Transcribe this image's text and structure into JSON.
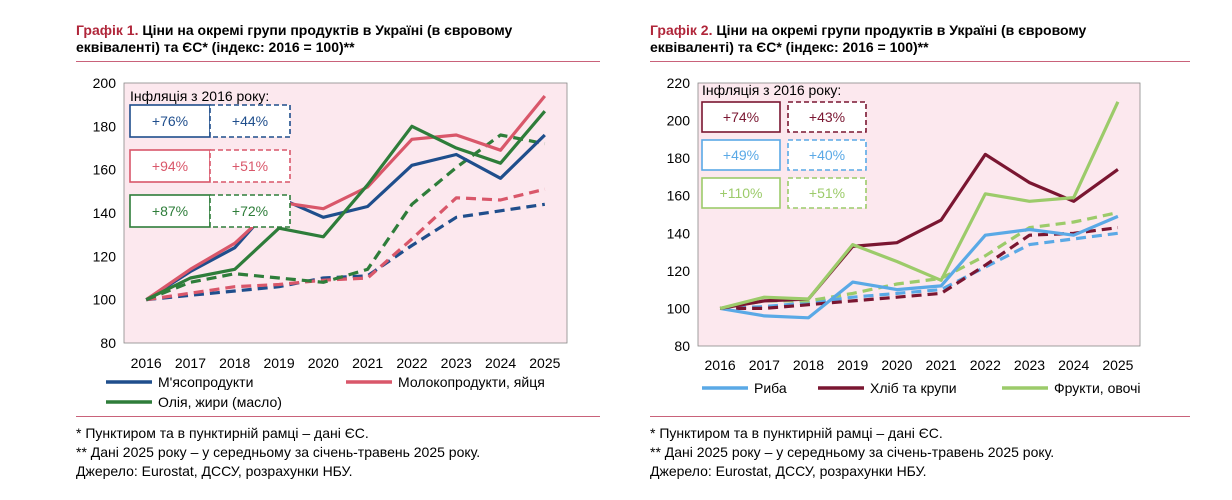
{
  "charts": [
    {
      "title_num": "Графік 1.",
      "title_rest": " Ціни на окремі групи продуктів в Україні (в євровому",
      "title_line2": "еквіваленті) та ЄС* (індекс: 2016 = 100)**",
      "notes": [
        "* Пунктиром та в пунктирній рамці – дані ЄС.",
        "** Дані 2025 року – у середньому за січень-травень 2025 року.",
        "Джерело: Eurostat, ДССУ, розрахунки НБУ."
      ],
      "inflation_title": "Інфляція з 2016 року:",
      "badges": [
        {
          "ua": "+76%",
          "eu": "+44%",
          "color": "#1f4e8c"
        },
        {
          "ua": "+94%",
          "eu": "+51%",
          "color": "#d9576a"
        },
        {
          "ua": "+87%",
          "eu": "+72%",
          "color": "#2e7d3a"
        }
      ]
    },
    {
      "title_num": "Графік 2.",
      "title_rest": " Ціни на окремі групи продуктів в Україні (в євровому",
      "title_line2": "еквіваленті) та ЄС* (індекс: 2016 = 100)**",
      "notes": [
        "* Пунктиром та в пунктирній рамці – дані ЄС.",
        "** Дані 2025 року – у середньому за січень-травень 2025 року.",
        "Джерело: Eurostat, ДССУ, розрахунки НБУ."
      ],
      "inflation_title": "Інфляція з 2016 року:",
      "badges": [
        {
          "ua": "+74%",
          "eu": "+43%",
          "color": "#7a1631"
        },
        {
          "ua": "+49%",
          "eu": "+40%",
          "color": "#5aa9e6"
        },
        {
          "ua": "+110%",
          "eu": "+51%",
          "color": "#9ccb6a"
        }
      ]
    }
  ],
  "chart_data": [
    {
      "type": "line",
      "x": [
        2016,
        2017,
        2018,
        2019,
        2020,
        2021,
        2022,
        2023,
        2024,
        2025
      ],
      "ylim": [
        80,
        200
      ],
      "yticks": [
        80,
        100,
        120,
        140,
        160,
        180,
        200
      ],
      "grid": false,
      "legend_position": "bottom",
      "series": [
        {
          "name": "М'ясопродукти",
          "color": "#1f4e8c",
          "dashed": false,
          "values": [
            100,
            113,
            124,
            147,
            138,
            143,
            162,
            167,
            156,
            176
          ]
        },
        {
          "name": "Молокопродукти, яйця",
          "color": "#d9576a",
          "dashed": false,
          "values": [
            100,
            114,
            126,
            145,
            142,
            152,
            174,
            176,
            169,
            194
          ]
        },
        {
          "name": "Олія, жири (масло)",
          "color": "#2e7d3a",
          "dashed": false,
          "values": [
            100,
            110,
            114,
            133,
            129,
            153,
            180,
            170,
            163,
            187
          ]
        },
        {
          "name": "",
          "color": "#1f4e8c",
          "dashed": true,
          "values": [
            100,
            102,
            104,
            106,
            110,
            111,
            125,
            138,
            141,
            144
          ]
        },
        {
          "name": "",
          "color": "#d9576a",
          "dashed": true,
          "values": [
            100,
            103,
            106,
            107,
            109,
            110,
            128,
            147,
            146,
            151
          ]
        },
        {
          "name": "",
          "color": "#2e7d3a",
          "dashed": true,
          "values": [
            100,
            108,
            112,
            110,
            108,
            114,
            144,
            161,
            176,
            172
          ]
        }
      ]
    },
    {
      "type": "line",
      "x": [
        2016,
        2017,
        2018,
        2019,
        2020,
        2021,
        2022,
        2023,
        2024,
        2025
      ],
      "ylim": [
        80,
        220
      ],
      "yticks": [
        80,
        100,
        120,
        140,
        160,
        180,
        200,
        220
      ],
      "grid": false,
      "legend_position": "bottom",
      "series": [
        {
          "name": "Риба",
          "color": "#5aa9e6",
          "dashed": false,
          "values": [
            100,
            96,
            95,
            114,
            110,
            112,
            139,
            142,
            139,
            149
          ]
        },
        {
          "name": "Хліб та крупи",
          "color": "#7a1631",
          "dashed": false,
          "values": [
            100,
            104,
            105,
            133,
            135,
            147,
            182,
            167,
            157,
            174
          ]
        },
        {
          "name": "Фрукти, овочі",
          "color": "#9ccb6a",
          "dashed": false,
          "values": [
            100,
            106,
            105,
            134,
            125,
            115,
            161,
            157,
            159,
            210
          ]
        },
        {
          "name": "",
          "color": "#5aa9e6",
          "dashed": true,
          "values": [
            100,
            101,
            103,
            106,
            108,
            110,
            122,
            134,
            137,
            140
          ]
        },
        {
          "name": "",
          "color": "#7a1631",
          "dashed": true,
          "values": [
            100,
            100,
            102,
            104,
            106,
            108,
            123,
            139,
            140,
            143
          ]
        },
        {
          "name": "",
          "color": "#9ccb6a",
          "dashed": true,
          "values": [
            100,
            104,
            104,
            108,
            113,
            116,
            128,
            143,
            146,
            151
          ]
        }
      ]
    }
  ]
}
